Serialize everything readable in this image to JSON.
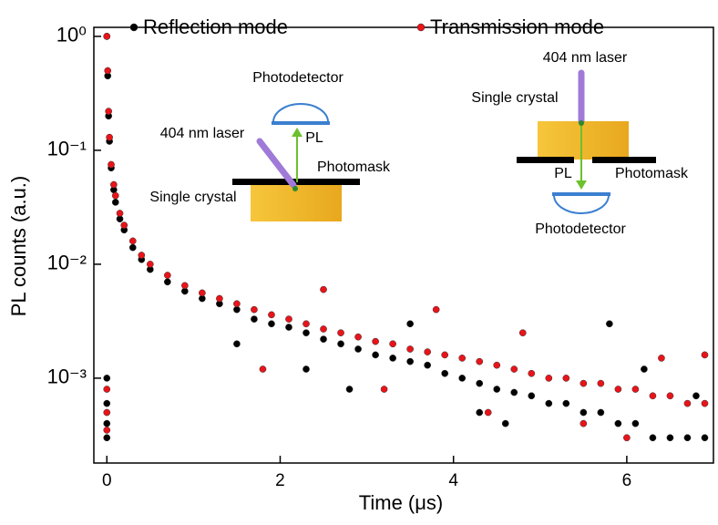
{
  "chart_data": {
    "type": "scatter",
    "x_label": "Time (μs)",
    "y_label": "PL counts (a.u.)",
    "xlim": [
      -0.15,
      7
    ],
    "xticks": [
      0,
      2,
      4,
      6
    ],
    "ylim": [
      0.00018,
      1.2
    ],
    "log_y": true,
    "yticks": [
      {
        "value": 0.001,
        "label": "10⁻³"
      },
      {
        "value": 0.01,
        "label": "10⁻²"
      },
      {
        "value": 0.1,
        "label": "10⁻¹"
      },
      {
        "value": 1,
        "label": "10⁰"
      }
    ],
    "series": [
      {
        "name": "Reflection mode",
        "color": "#000000",
        "x": [
          0,
          0.01,
          0.02,
          0.03,
          0.05,
          0.08,
          0.1,
          0.15,
          0.2,
          0.3,
          0.4,
          0.5,
          0.7,
          0.9,
          1.1,
          1.3,
          1.5,
          1.7,
          1.9,
          2.1,
          2.3,
          2.5,
          2.7,
          2.9,
          3.1,
          3.3,
          3.5,
          3.7,
          3.9,
          4.1,
          4.3,
          4.5,
          4.7,
          4.9,
          5.1,
          5.3,
          5.5,
          5.7,
          5.9,
          6.1,
          6.3,
          6.5,
          6.7,
          6.9,
          0,
          0,
          0,
          0,
          2.3,
          3.5,
          4.3,
          5.8,
          1.5,
          2.8,
          4.6,
          6.2,
          6.8
        ],
        "values": [
          1,
          0.45,
          0.2,
          0.12,
          0.07,
          0.045,
          0.035,
          0.025,
          0.02,
          0.014,
          0.011,
          0.009,
          0.007,
          0.0058,
          0.005,
          0.0045,
          0.004,
          0.0033,
          0.003,
          0.0028,
          0.0025,
          0.0022,
          0.002,
          0.0018,
          0.0016,
          0.0015,
          0.0014,
          0.0013,
          0.0011,
          0.001,
          0.0009,
          0.0008,
          0.00075,
          0.0007,
          0.0006,
          0.0006,
          0.0005,
          0.0005,
          0.0004,
          0.0004,
          0.0003,
          0.0003,
          0.0003,
          0.0003,
          0.001,
          0.0006,
          0.0004,
          0.0003,
          0.0012,
          0.003,
          0.0005,
          0.003,
          0.002,
          0.0008,
          0.0004,
          0.0012,
          0.0007
        ]
      },
      {
        "name": "Transmission mode",
        "color": "#e8141a",
        "x": [
          0,
          0.01,
          0.02,
          0.03,
          0.05,
          0.08,
          0.1,
          0.15,
          0.2,
          0.3,
          0.4,
          0.5,
          0.7,
          0.9,
          1.1,
          1.3,
          1.5,
          1.7,
          1.9,
          2.1,
          2.3,
          2.5,
          2.7,
          2.9,
          3.1,
          3.3,
          3.5,
          3.7,
          3.9,
          4.1,
          4.3,
          4.5,
          4.7,
          4.9,
          5.1,
          5.3,
          5.5,
          5.7,
          5.9,
          6.1,
          6.3,
          6.5,
          6.7,
          6.9,
          0,
          0,
          0,
          2.5,
          3.8,
          4.8,
          5.5,
          6.4,
          1.8,
          3.2,
          4.4,
          6.0,
          6.9
        ],
        "values": [
          1,
          0.5,
          0.22,
          0.13,
          0.075,
          0.05,
          0.04,
          0.028,
          0.022,
          0.016,
          0.012,
          0.01,
          0.008,
          0.0065,
          0.0056,
          0.005,
          0.0045,
          0.004,
          0.0036,
          0.0033,
          0.003,
          0.0027,
          0.0025,
          0.0023,
          0.0021,
          0.002,
          0.0018,
          0.0017,
          0.0016,
          0.0015,
          0.0014,
          0.0013,
          0.0012,
          0.0011,
          0.001,
          0.001,
          0.0009,
          0.0009,
          0.0008,
          0.0008,
          0.0007,
          0.0007,
          0.0006,
          0.0006,
          0.0008,
          0.0005,
          0.00035,
          0.006,
          0.004,
          0.0025,
          0.0004,
          0.0015,
          0.0012,
          0.0008,
          0.0005,
          0.0003,
          0.0016
        ]
      }
    ],
    "inset_reflection": {
      "detector": "Photodetector",
      "laser": "404 nm laser",
      "signal": "PL",
      "mask": "Photomask",
      "sample": "Single crystal"
    },
    "inset_transmission": {
      "laser": "404 nm laser",
      "sample": "Single crystal",
      "signal": "PL",
      "mask": "Photomask",
      "detector": "Photodetector"
    }
  }
}
